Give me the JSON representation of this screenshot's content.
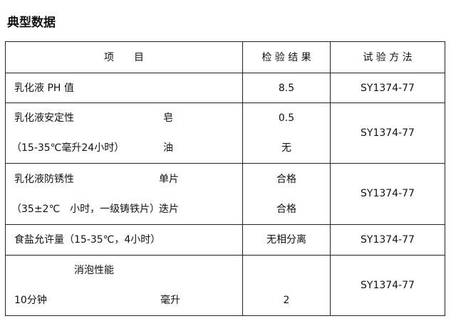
{
  "title": "典型数据",
  "table": {
    "headers": [
      "项　　目",
      "检 验 结 果",
      "试 验 方 法"
    ],
    "rows": [
      {
        "item_lines": [
          "乳化液 PH 值"
        ],
        "sub": [],
        "results": [
          "8.5"
        ],
        "method": "SY1374-77"
      },
      {
        "item_lines": [
          "乳化液安定性",
          "（15-35℃毫升24小时）"
        ],
        "sub": [
          "皂",
          "油"
        ],
        "results": [
          "0.5",
          "无"
        ],
        "method": "SY1374-77"
      },
      {
        "item_lines": [
          "乳化液防锈性",
          "（35±2℃　小时，一级铸铁片）"
        ],
        "sub": [
          "单片",
          "迭片"
        ],
        "results": [
          "合格",
          "合格"
        ],
        "method": "SY1374-77"
      },
      {
        "item_lines": [
          "食盐允许量（15-35℃，4小时）"
        ],
        "sub": [],
        "results": [
          "无相分离"
        ],
        "method": "SY1374-77"
      },
      {
        "item_lines": [
          "消泡性能",
          "10分钟"
        ],
        "sub": [
          "",
          "毫升"
        ],
        "results": [
          "",
          "2"
        ],
        "method": "SY1374-77"
      }
    ]
  }
}
